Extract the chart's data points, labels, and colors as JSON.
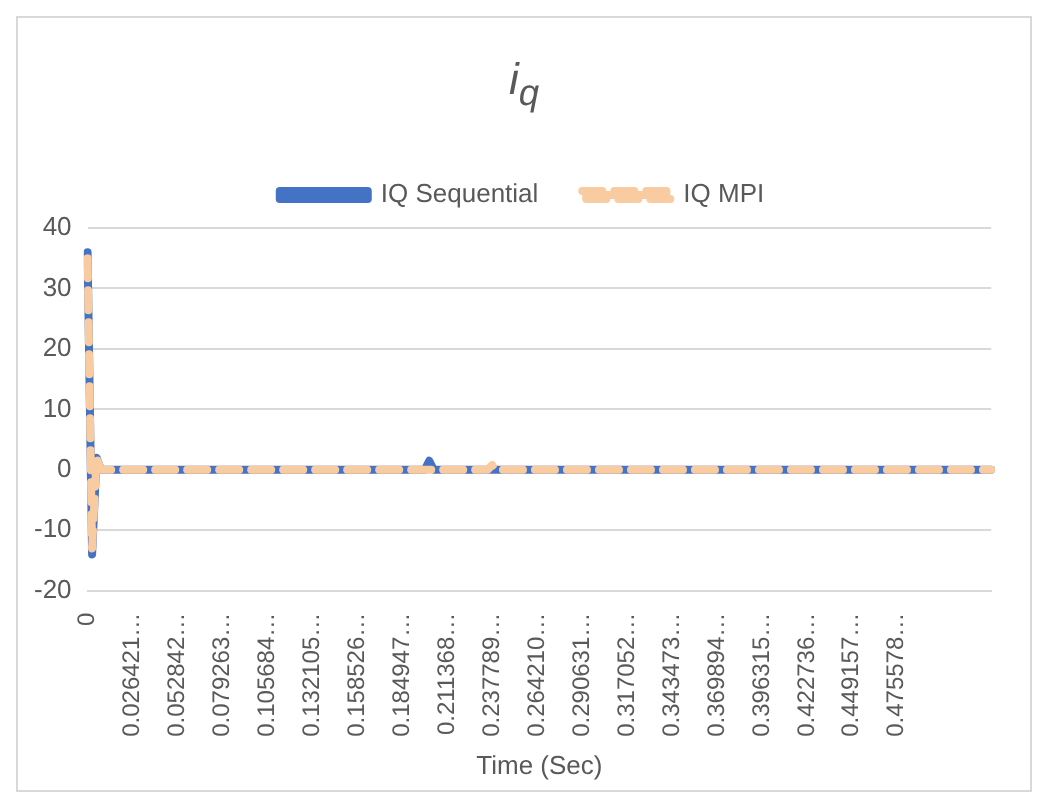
{
  "chart_data": {
    "type": "line",
    "title": "i$_{q}$",
    "xlabel": "Time (Sec)",
    "categories": [
      "0",
      null,
      null,
      null,
      null,
      null,
      null,
      null,
      null,
      null,
      "0.026421…",
      null,
      null,
      null,
      null,
      null,
      null,
      null,
      null,
      null,
      "0.052842…",
      null,
      null,
      null,
      null,
      null,
      null,
      null,
      null,
      null,
      "0.079263…",
      null,
      null,
      null,
      null,
      null,
      null,
      null,
      null,
      null,
      "0.105684…",
      null,
      null,
      null,
      null,
      null,
      null,
      null,
      null,
      null,
      "0.132105…",
      null,
      null,
      null,
      null,
      null,
      null,
      null,
      null,
      null,
      "0.158526…",
      null,
      null,
      null,
      null,
      null,
      null,
      null,
      null,
      null,
      "0.184947…",
      null,
      null,
      null,
      null,
      null,
      null,
      null,
      null,
      null,
      "0.211368…",
      null,
      null,
      null,
      null,
      null,
      null,
      null,
      null,
      null,
      "0.237789…",
      null,
      null,
      null,
      null,
      null,
      null,
      null,
      null,
      null,
      "0.264210…",
      null,
      null,
      null,
      null,
      null,
      null,
      null,
      null,
      null,
      "0.290631…",
      null,
      null,
      null,
      null,
      null,
      null,
      null,
      null,
      null,
      "0.317052…",
      null,
      null,
      null,
      null,
      null,
      null,
      null,
      null,
      null,
      "0.343473…",
      null,
      null,
      null,
      null,
      null,
      null,
      null,
      null,
      null,
      "0.369894…",
      null,
      null,
      null,
      null,
      null,
      null,
      null,
      null,
      null,
      "0.396315…",
      null,
      null,
      null,
      null,
      null,
      null,
      null,
      null,
      null,
      "0.422736…",
      null,
      null,
      null,
      null,
      null,
      null,
      null,
      null,
      null,
      "0.449157…",
      null,
      null,
      null,
      null,
      null,
      null,
      null,
      null,
      null,
      "0.475578…",
      null,
      null,
      null,
      null,
      null,
      null,
      null,
      null,
      null,
      null,
      null,
      null,
      null,
      null,
      null,
      null,
      null,
      null,
      null,
      null,
      null
    ],
    "series": [
      {
        "name": "IQ Sequential",
        "color": "#4472c4",
        "line_style": "solid",
        "values": [
          36,
          -14,
          2,
          0,
          0,
          0,
          0,
          0,
          0,
          0,
          0,
          0,
          0,
          0,
          0,
          0,
          0,
          0,
          0,
          0,
          0,
          0,
          0,
          0,
          0,
          0,
          0,
          0,
          0,
          0,
          0,
          0,
          0,
          0,
          0,
          0,
          0,
          0,
          0,
          0,
          0,
          0,
          0,
          0,
          0,
          0,
          0,
          0,
          0,
          0,
          0,
          0,
          0,
          0,
          0,
          0,
          0,
          0,
          0,
          0,
          0,
          0,
          0,
          0,
          0,
          0,
          0,
          0,
          0,
          0,
          0,
          0,
          0,
          0,
          0,
          0,
          1.5,
          0,
          0,
          0,
          0,
          0,
          0,
          0,
          0,
          0,
          0,
          0,
          0,
          0,
          0,
          0,
          0,
          0,
          0,
          0,
          0,
          0,
          0,
          0,
          0,
          0,
          0,
          0,
          0,
          0,
          0,
          0,
          0,
          0,
          0,
          0,
          0,
          0,
          0,
          0,
          0,
          0,
          0,
          0,
          0,
          0,
          0,
          0,
          0,
          0,
          0,
          0,
          0,
          0,
          0,
          0,
          0,
          0,
          0,
          0,
          0,
          0,
          0,
          0,
          0,
          0,
          0,
          0,
          0,
          0,
          0,
          0,
          0,
          0,
          0,
          0,
          0,
          0,
          0,
          0,
          0,
          0,
          0,
          0,
          0,
          0,
          0,
          0,
          0,
          0,
          0,
          0,
          0,
          0,
          0,
          0,
          0,
          0,
          0,
          0,
          0,
          0,
          0,
          0,
          0,
          0,
          0,
          0,
          0,
          0,
          0,
          0,
          0,
          0,
          0,
          0,
          0,
          0,
          0,
          0,
          0,
          0,
          0,
          0,
          0,
          0
        ]
      },
      {
        "name": "IQ MPI",
        "color": "#f8cba0",
        "line_style": "dashed",
        "values": [
          35,
          -13,
          2,
          0,
          0,
          0,
          0,
          0,
          0,
          0,
          0,
          0,
          0,
          0,
          0,
          0,
          0,
          0,
          0,
          0,
          0,
          0,
          0,
          0,
          0,
          0,
          0,
          0,
          0,
          0,
          0,
          0,
          0,
          0,
          0,
          0,
          0,
          0,
          0,
          0,
          0,
          0,
          0,
          0,
          0,
          0,
          0,
          0,
          0,
          0,
          0,
          0,
          0,
          0,
          0,
          0,
          0,
          0,
          0,
          0,
          0,
          0,
          0,
          0,
          0,
          0,
          0,
          0,
          0,
          0,
          0,
          0,
          0,
          0,
          0,
          0,
          0,
          0,
          0,
          0,
          0,
          0,
          0,
          0,
          0,
          0,
          0,
          0,
          0,
          0,
          0.8,
          0,
          0,
          0,
          0,
          0,
          0,
          0,
          0,
          0,
          0,
          0,
          0,
          0,
          0,
          0,
          0,
          0,
          0,
          0,
          0,
          0,
          0,
          0,
          0,
          0,
          0,
          0,
          0,
          0,
          0,
          0,
          0,
          0,
          0,
          0,
          0,
          0,
          0,
          0,
          0,
          0,
          0,
          0,
          0,
          0,
          0,
          0,
          0,
          0,
          0,
          0,
          0,
          0,
          0,
          0,
          0,
          0,
          0,
          0,
          0,
          0,
          0,
          0,
          0,
          0,
          0,
          0,
          0,
          0,
          0,
          0,
          0,
          0,
          0,
          0,
          0,
          0,
          0,
          0,
          0,
          0,
          0,
          0,
          0,
          0,
          0,
          0,
          0,
          0,
          0,
          0,
          0,
          0,
          0,
          0,
          0,
          0,
          0,
          0,
          0,
          0,
          0,
          0,
          0,
          0,
          0,
          0,
          0,
          0,
          0,
          0
        ]
      }
    ],
    "ylim": [
      -20,
      40
    ],
    "yticks": [
      -20,
      -10,
      0,
      10,
      20,
      30,
      40
    ],
    "grid": "y",
    "legend": "top"
  }
}
